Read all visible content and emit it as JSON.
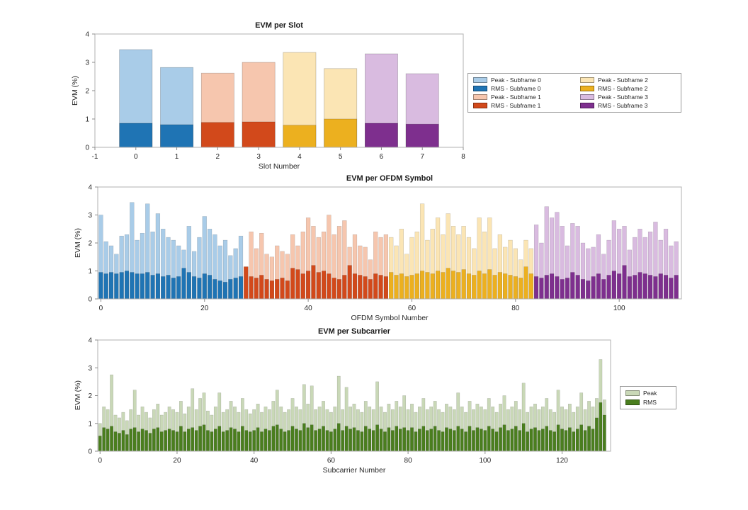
{
  "figure": {
    "background": "#ffffff",
    "axis_color": "#b0b0b0",
    "tick_color": "#8c8c8c",
    "text_color": "#262626",
    "title_color": "#1a1a1a"
  },
  "colors": {
    "subframes": [
      {
        "peak": "#A9CCE8",
        "rms": "#1F74B4"
      },
      {
        "peak": "#F6C6AE",
        "rms": "#D2491B"
      },
      {
        "peak": "#FBE5B4",
        "rms": "#ECB01F"
      },
      {
        "peak": "#D9BBE0",
        "rms": "#7E2F8E"
      }
    ],
    "subcarrier": {
      "peak": "#C9D8B7",
      "rms": "#4A7E1E"
    }
  },
  "chart_data": [
    {
      "type": "bar",
      "title": "EVM per Slot",
      "xlabel": "Slot Number",
      "ylabel": "EVM (%)",
      "xlim": [
        -1,
        8
      ],
      "ylim": [
        0,
        4
      ],
      "xticks": [
        -1,
        0,
        1,
        2,
        3,
        4,
        5,
        6,
        7,
        8
      ],
      "yticks": [
        0,
        1,
        2,
        3,
        4
      ],
      "categories": [
        0,
        1,
        2,
        3,
        4,
        5,
        6,
        7
      ],
      "subframe_of_category": [
        0,
        0,
        1,
        1,
        2,
        2,
        3,
        3
      ],
      "series": [
        {
          "name": "Peak",
          "values": [
            3.45,
            2.82,
            2.62,
            3.0,
            3.35,
            2.78,
            3.3,
            2.6
          ]
        },
        {
          "name": "RMS",
          "values": [
            0.85,
            0.8,
            0.88,
            0.9,
            0.78,
            1.0,
            0.85,
            0.82
          ]
        }
      ],
      "legend": {
        "position": "right-outside",
        "entries": [
          "Peak - Subframe 0",
          "RMS - Subframe 0",
          "Peak - Subframe 1",
          "RMS - Subframe 1",
          "Peak - Subframe 2",
          "RMS - Subframe 2",
          "Peak - Subframe 3",
          "RMS - Subframe 3"
        ]
      }
    },
    {
      "type": "bar",
      "title": "EVM per OFDM Symbol",
      "xlabel": "OFDM Symbol Number",
      "ylabel": "EVM (%)",
      "xlim": [
        -0.6,
        112
      ],
      "ylim": [
        0,
        4
      ],
      "xticks": [
        0,
        20,
        40,
        60,
        80,
        100
      ],
      "yticks": [
        0,
        1,
        2,
        3,
        4
      ],
      "symbols_per_subframe": 28,
      "series": [
        {
          "name": "Peak",
          "values": [
            3.0,
            2.05,
            1.9,
            1.6,
            2.25,
            2.3,
            3.45,
            2.1,
            2.35,
            3.4,
            2.4,
            3.05,
            2.5,
            2.2,
            2.1,
            1.9,
            1.75,
            2.6,
            1.7,
            2.2,
            2.95,
            2.5,
            2.3,
            1.9,
            2.1,
            1.55,
            1.8,
            2.25,
            1.15,
            2.4,
            1.8,
            2.35,
            1.6,
            1.5,
            1.9,
            1.7,
            1.6,
            2.3,
            1.9,
            2.4,
            2.9,
            2.6,
            2.2,
            2.4,
            3.0,
            2.3,
            2.6,
            2.8,
            1.85,
            2.3,
            1.9,
            1.85,
            1.4,
            2.4,
            2.2,
            2.3,
            2.2,
            1.9,
            2.5,
            1.6,
            2.2,
            2.4,
            3.4,
            2.1,
            2.5,
            2.9,
            2.3,
            3.05,
            2.6,
            2.3,
            2.6,
            2.2,
            1.8,
            2.9,
            2.4,
            2.9,
            1.8,
            2.3,
            1.85,
            2.1,
            1.8,
            1.4,
            2.1,
            1.8,
            2.65,
            2.0,
            3.3,
            2.9,
            3.1,
            2.6,
            1.9,
            2.7,
            2.6,
            2.0,
            1.8,
            1.85,
            2.3,
            1.6,
            2.1,
            2.8,
            2.5,
            2.6,
            1.75,
            2.2,
            2.5,
            2.2,
            2.4,
            2.75,
            2.1,
            2.5,
            1.9,
            2.05
          ]
        },
        {
          "name": "RMS",
          "values": [
            0.95,
            0.9,
            0.95,
            0.9,
            0.95,
            1.0,
            0.95,
            0.9,
            0.9,
            0.95,
            0.85,
            0.9,
            0.8,
            0.85,
            0.75,
            0.8,
            1.1,
            0.95,
            0.8,
            0.75,
            0.9,
            0.85,
            0.7,
            0.65,
            0.6,
            0.7,
            0.75,
            0.8,
            1.15,
            0.8,
            0.75,
            0.85,
            0.7,
            0.65,
            0.7,
            0.75,
            0.65,
            1.1,
            1.05,
            0.9,
            1.0,
            1.2,
            0.95,
            1.0,
            0.9,
            0.75,
            0.7,
            0.85,
            1.2,
            0.9,
            0.85,
            0.8,
            0.7,
            0.9,
            0.85,
            0.8,
            0.95,
            0.85,
            0.9,
            0.8,
            0.85,
            0.9,
            1.0,
            0.95,
            0.9,
            1.0,
            0.95,
            1.1,
            1.0,
            0.95,
            1.05,
            0.9,
            0.85,
            1.0,
            0.9,
            1.05,
            0.85,
            0.95,
            0.9,
            0.85,
            0.8,
            0.75,
            1.15,
            0.9,
            0.8,
            0.75,
            0.85,
            0.9,
            0.8,
            0.7,
            0.75,
            0.95,
            0.85,
            0.7,
            0.65,
            0.8,
            0.9,
            0.7,
            0.85,
            1.0,
            0.9,
            1.2,
            0.8,
            0.85,
            0.95,
            0.9,
            0.85,
            0.8,
            0.9,
            0.85,
            0.75,
            0.85
          ]
        }
      ]
    },
    {
      "type": "bar",
      "title": "EVM per Subcarrier",
      "xlabel": "Subcarrier Number",
      "ylabel": "EVM (%)",
      "xlim": [
        -0.6,
        132.6
      ],
      "ylim": [
        0,
        4
      ],
      "xticks": [
        0,
        20,
        40,
        60,
        80,
        100,
        120
      ],
      "yticks": [
        0,
        1,
        2,
        3,
        4
      ],
      "series": [
        {
          "name": "Peak",
          "values": [
            1.0,
            1.6,
            1.5,
            2.75,
            1.3,
            1.2,
            1.4,
            1.1,
            1.5,
            2.2,
            1.3,
            1.6,
            1.4,
            1.2,
            1.5,
            1.7,
            1.3,
            1.4,
            1.6,
            1.5,
            1.4,
            1.8,
            1.35,
            1.6,
            2.25,
            1.5,
            1.9,
            2.1,
            1.45,
            1.3,
            1.6,
            2.1,
            1.4,
            1.5,
            1.8,
            1.6,
            1.4,
            1.9,
            1.5,
            1.35,
            1.5,
            1.7,
            1.4,
            1.6,
            1.5,
            1.8,
            2.2,
            1.6,
            1.4,
            1.5,
            1.9,
            1.6,
            1.5,
            2.4,
            1.7,
            2.35,
            1.5,
            1.6,
            1.8,
            1.5,
            1.4,
            1.6,
            2.7,
            1.5,
            2.3,
            1.6,
            1.7,
            1.5,
            1.4,
            1.8,
            1.6,
            1.5,
            2.5,
            1.6,
            1.4,
            1.7,
            1.5,
            1.8,
            1.6,
            2.0,
            1.5,
            1.7,
            1.4,
            1.6,
            1.9,
            1.5,
            1.6,
            1.8,
            1.5,
            1.4,
            1.7,
            1.6,
            1.5,
            2.1,
            1.6,
            1.4,
            1.8,
            1.5,
            1.7,
            1.6,
            1.5,
            1.9,
            1.6,
            1.4,
            1.7,
            2.0,
            1.5,
            1.6,
            1.8,
            1.5,
            2.45,
            1.4,
            1.6,
            1.7,
            1.5,
            1.6,
            1.9,
            1.5,
            1.4,
            2.2,
            1.6,
            1.5,
            1.7,
            1.4,
            1.6,
            2.1,
            1.5,
            1.8,
            1.6,
            1.9,
            3.3,
            1.85
          ]
        },
        {
          "name": "RMS",
          "values": [
            0.55,
            0.85,
            0.8,
            0.9,
            0.7,
            0.65,
            0.75,
            0.6,
            0.8,
            0.85,
            0.7,
            0.8,
            0.75,
            0.65,
            0.8,
            0.85,
            0.7,
            0.75,
            0.8,
            0.75,
            0.7,
            0.9,
            0.7,
            0.8,
            0.85,
            0.75,
            0.9,
            0.95,
            0.75,
            0.7,
            0.8,
            0.9,
            0.7,
            0.75,
            0.85,
            0.8,
            0.7,
            0.9,
            0.75,
            0.7,
            0.75,
            0.85,
            0.7,
            0.8,
            0.75,
            0.9,
            0.95,
            0.8,
            0.7,
            0.75,
            0.9,
            0.8,
            0.75,
            1.0,
            0.85,
            0.95,
            0.75,
            0.8,
            0.9,
            0.75,
            0.7,
            0.8,
            1.0,
            0.75,
            0.9,
            0.8,
            0.85,
            0.75,
            0.7,
            0.9,
            0.8,
            0.75,
            0.95,
            0.8,
            0.7,
            0.85,
            0.75,
            0.9,
            0.8,
            0.85,
            0.75,
            0.85,
            0.7,
            0.8,
            0.9,
            0.75,
            0.8,
            0.9,
            0.75,
            0.7,
            0.85,
            0.8,
            0.75,
            0.9,
            0.8,
            0.7,
            0.9,
            0.75,
            0.85,
            0.8,
            0.75,
            0.9,
            0.8,
            0.7,
            0.85,
            0.95,
            0.75,
            0.8,
            0.9,
            0.75,
            1.0,
            0.7,
            0.8,
            0.85,
            0.75,
            0.8,
            0.9,
            0.75,
            0.7,
            0.95,
            0.8,
            0.75,
            0.85,
            0.7,
            0.8,
            0.95,
            0.75,
            0.9,
            0.8,
            1.2,
            1.75,
            1.3
          ]
        }
      ],
      "legend": {
        "position": "right-outside",
        "entries": [
          "Peak",
          "RMS"
        ]
      }
    }
  ]
}
